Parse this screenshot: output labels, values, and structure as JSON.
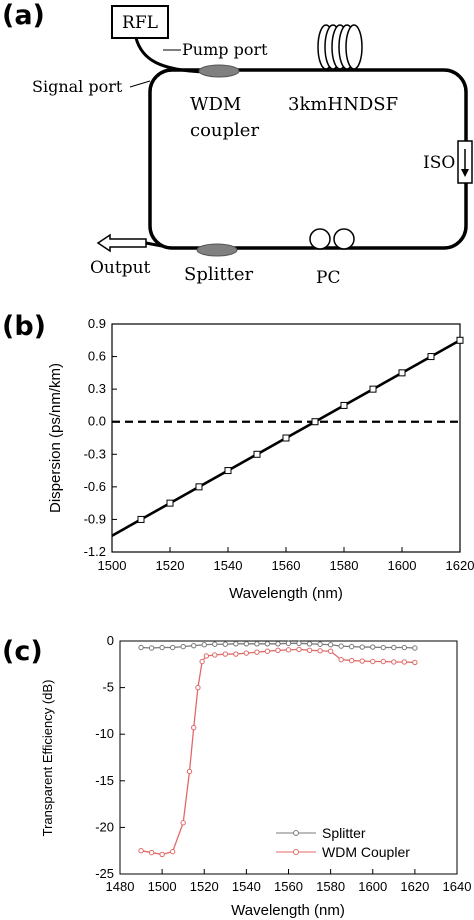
{
  "panels": {
    "a": "(a)",
    "b": "(b)",
    "c": "(c)"
  },
  "schematic": {
    "rfl": "RFL",
    "pump_port": "Pump port",
    "signal_port": "Signal port",
    "wdm_line1": "WDM",
    "wdm_line2": "coupler",
    "fiber": "3kmHNDSF",
    "iso": "ISO",
    "output": "Output",
    "splitter": "Splitter",
    "pc": "PC",
    "colors": {
      "component": "#808080",
      "line": "#000000"
    }
  },
  "chart_data": [
    {
      "id": "b",
      "type": "line",
      "xlabel": "Wavelength (nm)",
      "ylabel": "Dispersion (ps/nm/km)",
      "xlim": [
        1500,
        1620
      ],
      "ylim": [
        -1.2,
        0.9
      ],
      "xticks": [
        1500,
        1520,
        1540,
        1560,
        1580,
        1600,
        1620
      ],
      "yticks": [
        0.9,
        0.6,
        0.3,
        0.0,
        -0.3,
        -0.6,
        -0.9,
        -1.2
      ],
      "ytick_labels": [
        "0.9",
        "0.6",
        "0.3",
        "0.0",
        "-0.3",
        "-0.6",
        "-0.9",
        "-1.2"
      ],
      "series": [
        {
          "x": [
            1500,
            1620
          ],
          "y": [
            -1.05,
            0.75
          ],
          "marker_x": [
            1510,
            1520,
            1530,
            1540,
            1550,
            1560,
            1570,
            1580,
            1590,
            1600,
            1610,
            1620
          ],
          "marker_y": [
            -0.9,
            -0.75,
            -0.6,
            -0.45,
            -0.3,
            -0.15,
            0.0,
            0.15,
            0.3,
            0.45,
            0.6,
            0.75
          ],
          "color": "#000000"
        }
      ],
      "reference_line": {
        "y": 0.0,
        "style": "dashed"
      },
      "grid": false
    },
    {
      "id": "c",
      "type": "line",
      "xlabel": "Wavelength (nm)",
      "ylabel": "Transparent Efficiency (dB)",
      "xlim": [
        1480,
        1640
      ],
      "ylim": [
        -25,
        0
      ],
      "xticks": [
        1480,
        1500,
        1520,
        1540,
        1560,
        1580,
        1600,
        1620,
        1640
      ],
      "yticks": [
        0,
        -5,
        -10,
        -15,
        -20,
        -25
      ],
      "legend_position": "bottom-right",
      "grid": false,
      "series": [
        {
          "name": "Splitter",
          "color": "#7a7a7a",
          "x": [
            1490,
            1495,
            1500,
            1505,
            1510,
            1515,
            1520,
            1525,
            1530,
            1535,
            1540,
            1545,
            1550,
            1555,
            1560,
            1565,
            1570,
            1575,
            1580,
            1585,
            1590,
            1595,
            1600,
            1605,
            1610,
            1615,
            1620
          ],
          "y": [
            -0.7,
            -0.75,
            -0.7,
            -0.7,
            -0.6,
            -0.5,
            -0.4,
            -0.35,
            -0.35,
            -0.3,
            -0.3,
            -0.3,
            -0.3,
            -0.3,
            -0.25,
            -0.25,
            -0.3,
            -0.35,
            -0.4,
            -0.55,
            -0.6,
            -0.65,
            -0.65,
            -0.7,
            -0.7,
            -0.7,
            -0.75
          ]
        },
        {
          "name": "WDM Coupler",
          "color": "#e06a6a",
          "x": [
            1490,
            1495,
            1500,
            1505,
            1510,
            1513,
            1515,
            1517,
            1519,
            1521,
            1525,
            1530,
            1535,
            1540,
            1545,
            1550,
            1555,
            1560,
            1565,
            1570,
            1575,
            1580,
            1585,
            1590,
            1595,
            1600,
            1605,
            1610,
            1615,
            1620
          ],
          "y": [
            -22.5,
            -22.7,
            -22.9,
            -22.6,
            -19.5,
            -14,
            -9.3,
            -5,
            -2.2,
            -1.6,
            -1.5,
            -1.4,
            -1.4,
            -1.3,
            -1.2,
            -1.1,
            -1.0,
            -0.95,
            -0.9,
            -1.0,
            -1.05,
            -1.1,
            -2.0,
            -2.1,
            -2.15,
            -2.2,
            -2.2,
            -2.25,
            -2.25,
            -2.3
          ]
        }
      ]
    }
  ]
}
